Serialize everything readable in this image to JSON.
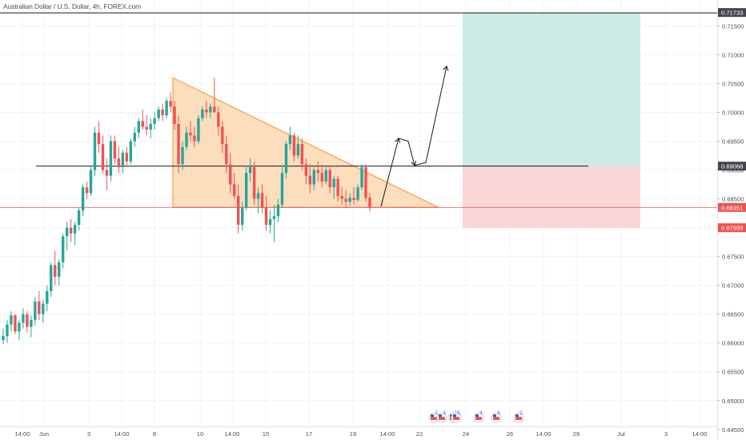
{
  "header": {
    "title": "Australian Dollar / U.S. Dollar, 4h, FOREX.com"
  },
  "colors": {
    "up": "#26a69a",
    "down": "#ef5350",
    "triangle_fill": "#fbd7b0",
    "triangle_stroke": "#f5a14a",
    "target_zone": "#cdebe6",
    "stop_zone": "#f9d7d7",
    "price_badge_red": "#ef5350",
    "price_badge_dark": "#434651",
    "current_price_line": "#ef5350",
    "resistance_line": "#131722"
  },
  "price_axis": {
    "ticks": [
      "0.71500",
      "0.71000",
      "0.70500",
      "0.70000",
      "0.69500",
      "0.69000",
      "0.68500",
      "0.68000",
      "0.67500",
      "0.67000",
      "0.66500",
      "0.66000",
      "0.65500",
      "0.65000",
      "0.64500"
    ],
    "badges": [
      {
        "label": "0.71733",
        "value": 0.71733,
        "style": "dark"
      },
      {
        "label": "0.69068",
        "value": 0.69068,
        "style": "dark"
      },
      {
        "label": "0.68351",
        "value": 0.68351,
        "style": "red"
      },
      {
        "label": "0.67999",
        "value": 0.67999,
        "style": "red"
      }
    ]
  },
  "time_axis": {
    "labels": [
      "14:00",
      "Jun",
      "3",
      "14:00",
      "8",
      "10",
      "14:00",
      "15",
      "17",
      "19",
      "14:00",
      "22",
      "24",
      "26",
      "14:00",
      "29",
      "Jul",
      "3",
      "14:00"
    ]
  },
  "events": {
    "markers": [
      "2",
      "3",
      "2",
      "5",
      "4",
      "6",
      "2"
    ]
  },
  "chart_data": {
    "type": "candlestick",
    "symbol": "Australian Dollar / U.S. Dollar",
    "timeframe": "4h",
    "source": "FOREX.com",
    "ylim": [
      0.644,
      0.7195
    ],
    "current_price": 0.68351,
    "levels": {
      "take_profit": 0.71733,
      "entry_resistance": 0.69068,
      "current": 0.68351,
      "stop_loss": 0.67999
    },
    "candles": [
      [
        0.6605,
        0.6625,
        0.6598,
        0.6612
      ],
      [
        0.6612,
        0.664,
        0.66,
        0.6632
      ],
      [
        0.6632,
        0.6655,
        0.662,
        0.6648
      ],
      [
        0.6648,
        0.665,
        0.6615,
        0.662
      ],
      [
        0.662,
        0.664,
        0.6605,
        0.6635
      ],
      [
        0.6635,
        0.666,
        0.6625,
        0.665
      ],
      [
        0.665,
        0.6655,
        0.6618,
        0.6628
      ],
      [
        0.6628,
        0.6648,
        0.661,
        0.664
      ],
      [
        0.664,
        0.668,
        0.663,
        0.6672
      ],
      [
        0.6672,
        0.669,
        0.664,
        0.665
      ],
      [
        0.665,
        0.6675,
        0.6635,
        0.6668
      ],
      [
        0.6668,
        0.67,
        0.6655,
        0.669
      ],
      [
        0.669,
        0.674,
        0.668,
        0.6735
      ],
      [
        0.6735,
        0.676,
        0.67,
        0.6715
      ],
      [
        0.6715,
        0.6745,
        0.67,
        0.674
      ],
      [
        0.674,
        0.679,
        0.673,
        0.6785
      ],
      [
        0.6785,
        0.681,
        0.676,
        0.68
      ],
      [
        0.68,
        0.6815,
        0.6775,
        0.679
      ],
      [
        0.679,
        0.681,
        0.677,
        0.6805
      ],
      [
        0.6805,
        0.6835,
        0.6795,
        0.683
      ],
      [
        0.683,
        0.6875,
        0.682,
        0.687
      ],
      [
        0.687,
        0.688,
        0.685,
        0.686
      ],
      [
        0.686,
        0.6905,
        0.6855,
        0.69
      ],
      [
        0.69,
        0.6975,
        0.689,
        0.6965
      ],
      [
        0.6965,
        0.6985,
        0.693,
        0.6945
      ],
      [
        0.6945,
        0.696,
        0.6895,
        0.69
      ],
      [
        0.69,
        0.692,
        0.6865,
        0.689
      ],
      [
        0.689,
        0.696,
        0.688,
        0.695
      ],
      [
        0.695,
        0.696,
        0.691,
        0.692
      ],
      [
        0.692,
        0.694,
        0.6895,
        0.6905
      ],
      [
        0.6905,
        0.6935,
        0.6895,
        0.693
      ],
      [
        0.693,
        0.694,
        0.6905,
        0.6915
      ],
      [
        0.6915,
        0.6955,
        0.691,
        0.695
      ],
      [
        0.695,
        0.6975,
        0.694,
        0.6965
      ],
      [
        0.6965,
        0.699,
        0.6955,
        0.6985
      ],
      [
        0.6985,
        0.7005,
        0.697,
        0.6975
      ],
      [
        0.6975,
        0.6995,
        0.696,
        0.697
      ],
      [
        0.697,
        0.699,
        0.6955,
        0.698
      ],
      [
        0.698,
        0.7,
        0.697,
        0.699
      ],
      [
        0.699,
        0.701,
        0.6985,
        0.7005
      ],
      [
        0.7005,
        0.7015,
        0.6985,
        0.6995
      ],
      [
        0.6995,
        0.7025,
        0.699,
        0.702
      ],
      [
        0.702,
        0.7035,
        0.7,
        0.701
      ],
      [
        0.701,
        0.702,
        0.697,
        0.698
      ],
      [
        0.698,
        0.6995,
        0.6895,
        0.691
      ],
      [
        0.691,
        0.695,
        0.69,
        0.694
      ],
      [
        0.694,
        0.6975,
        0.6935,
        0.6965
      ],
      [
        0.6965,
        0.6985,
        0.695,
        0.696
      ],
      [
        0.696,
        0.6975,
        0.694,
        0.695
      ],
      [
        0.695,
        0.6995,
        0.6945,
        0.699
      ],
      [
        0.699,
        0.701,
        0.6985,
        0.7005
      ],
      [
        0.7005,
        0.702,
        0.699,
        0.7
      ],
      [
        0.7,
        0.7015,
        0.699,
        0.701
      ],
      [
        0.701,
        0.706,
        0.7,
        0.7
      ],
      [
        0.7,
        0.701,
        0.696,
        0.6975
      ],
      [
        0.6975,
        0.6985,
        0.693,
        0.6945
      ],
      [
        0.6945,
        0.696,
        0.6895,
        0.691
      ],
      [
        0.691,
        0.693,
        0.686,
        0.6875
      ],
      [
        0.6875,
        0.6895,
        0.685,
        0.6855
      ],
      [
        0.6855,
        0.6875,
        0.679,
        0.6805
      ],
      [
        0.6805,
        0.6845,
        0.6795,
        0.6835
      ],
      [
        0.6835,
        0.6905,
        0.683,
        0.6895
      ],
      [
        0.6895,
        0.692,
        0.688,
        0.6905
      ],
      [
        0.6905,
        0.6915,
        0.684,
        0.685
      ],
      [
        0.685,
        0.687,
        0.6825,
        0.686
      ],
      [
        0.686,
        0.6875,
        0.6825,
        0.6835
      ],
      [
        0.6835,
        0.6855,
        0.6795,
        0.6805
      ],
      [
        0.6805,
        0.683,
        0.679,
        0.6815
      ],
      [
        0.6815,
        0.684,
        0.6775,
        0.682
      ],
      [
        0.682,
        0.685,
        0.681,
        0.684
      ],
      [
        0.684,
        0.6905,
        0.6835,
        0.6895
      ],
      [
        0.6895,
        0.695,
        0.6885,
        0.6945
      ],
      [
        0.6945,
        0.6975,
        0.6935,
        0.696
      ],
      [
        0.696,
        0.6965,
        0.6915,
        0.6925
      ],
      [
        0.6925,
        0.696,
        0.692,
        0.6945
      ],
      [
        0.6945,
        0.6955,
        0.69,
        0.691
      ],
      [
        0.691,
        0.692,
        0.6875,
        0.689
      ],
      [
        0.689,
        0.691,
        0.686,
        0.6875
      ],
      [
        0.6875,
        0.6905,
        0.6865,
        0.69
      ],
      [
        0.69,
        0.6915,
        0.688,
        0.6895
      ],
      [
        0.6895,
        0.691,
        0.687,
        0.688
      ],
      [
        0.688,
        0.6905,
        0.6875,
        0.69
      ],
      [
        0.69,
        0.6905,
        0.686,
        0.687
      ],
      [
        0.687,
        0.689,
        0.685,
        0.6885
      ],
      [
        0.6885,
        0.689,
        0.6845,
        0.6855
      ],
      [
        0.6855,
        0.687,
        0.684,
        0.685
      ],
      [
        0.685,
        0.6865,
        0.6835,
        0.6845
      ],
      [
        0.6845,
        0.686,
        0.6838,
        0.6852
      ],
      [
        0.6852,
        0.687,
        0.684,
        0.6848
      ],
      [
        0.6848,
        0.6875,
        0.6845,
        0.687
      ],
      [
        0.687,
        0.691,
        0.6865,
        0.6905
      ],
      [
        0.6905,
        0.691,
        0.6845,
        0.6852
      ],
      [
        0.6852,
        0.686,
        0.6828,
        0.6835
      ]
    ]
  }
}
